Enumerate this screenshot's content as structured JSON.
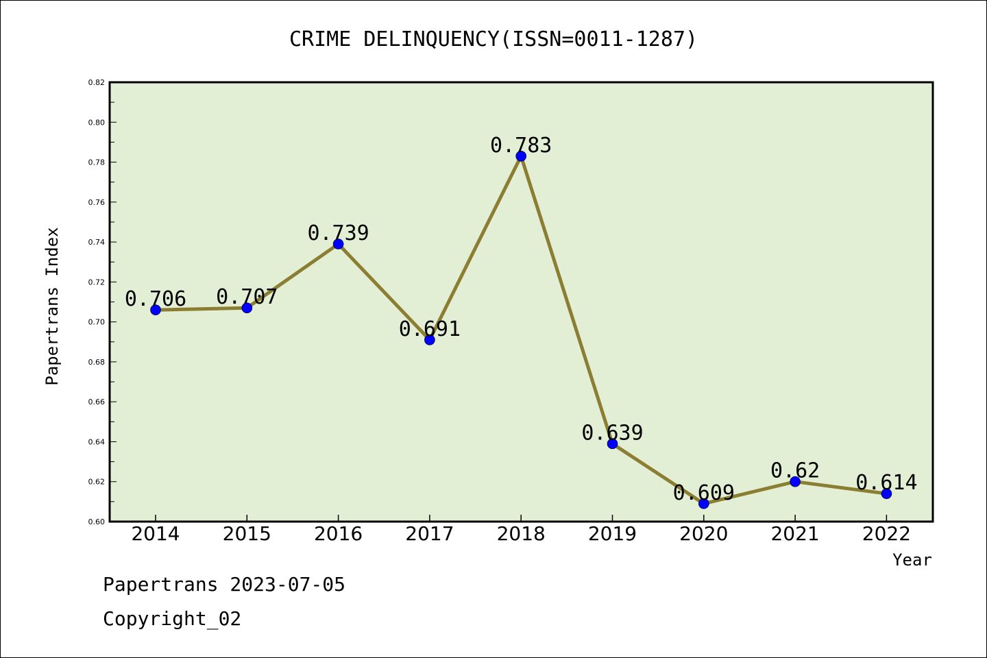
{
  "chart_data": {
    "type": "line",
    "title": "CRIME DELINQUENCY(ISSN=0011-1287)",
    "xlabel": "Year",
    "ylabel": "Papertrans Index",
    "categories": [
      "2014",
      "2015",
      "2016",
      "2017",
      "2018",
      "2019",
      "2020",
      "2021",
      "2022"
    ],
    "values": [
      0.706,
      0.707,
      0.739,
      0.691,
      0.783,
      0.639,
      0.609,
      0.62,
      0.614
    ],
    "data_labels": [
      "0.706",
      "0.707",
      "0.739",
      "0.691",
      "0.783",
      "0.639",
      "0.609",
      "0.62",
      "0.614"
    ],
    "ylim": [
      0.6,
      0.82
    ],
    "yticks": [
      "0.60",
      "0.62",
      "0.64",
      "0.66",
      "0.68",
      "0.70",
      "0.72",
      "0.74",
      "0.76",
      "0.78",
      "0.80",
      "0.82"
    ],
    "grid": false,
    "legend": "none",
    "colors": {
      "plot_background": "#e2efd4",
      "line": "#8b7d32",
      "marker": "#0000ff"
    }
  },
  "footer": {
    "date_line": "Papertrans 2023-07-05",
    "copyright": "Copyright_02"
  }
}
